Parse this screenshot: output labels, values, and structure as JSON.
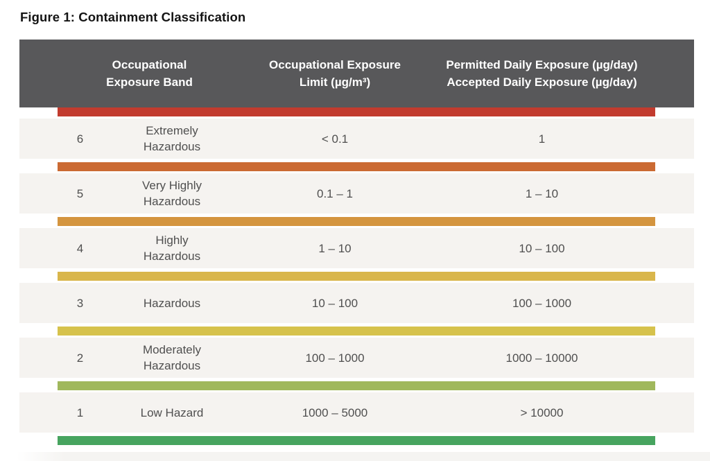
{
  "figure_title": "Figure 1: Containment Classification",
  "colors": {
    "header_bg": "#58585a",
    "header_text": "#ffffff",
    "row_bg": "#f5f3f0",
    "title_text": "#141414",
    "body_text": "#4f4f4f",
    "bars": [
      "#c23b2e",
      "#cb6a33",
      "#d4953f",
      "#d9b64b",
      "#d6c24c",
      "#a0b85c",
      "#47a45f"
    ]
  },
  "table": {
    "headers": {
      "band": [
        "Occupational",
        "Exposure Band"
      ],
      "oel": [
        "Occupational Exposure",
        "Limit (µg/m³)"
      ],
      "pde": [
        "Permitted Daily Exposure (µg/day)",
        "Accepted Daily Exposure (µg/day)"
      ]
    },
    "rows": [
      {
        "band": "6",
        "name": [
          "Extremely",
          "Hazardous"
        ],
        "oel": "< 0.1",
        "pde": "1"
      },
      {
        "band": "5",
        "name": [
          "Very Highly",
          "Hazardous"
        ],
        "oel": "0.1 – 1",
        "pde": "1 – 10"
      },
      {
        "band": "4",
        "name": [
          "Highly",
          "Hazardous"
        ],
        "oel": "1 – 10",
        "pde": "10 – 100"
      },
      {
        "band": "3",
        "name": [
          "Hazardous"
        ],
        "oel": "10 – 100",
        "pde": "100 – 1000"
      },
      {
        "band": "2",
        "name": [
          "Moderately",
          "Hazardous"
        ],
        "oel": "100 – 1000",
        "pde": "1000 – 10000"
      },
      {
        "band": "1",
        "name": [
          "Low Hazard"
        ],
        "oel": "1000 – 5000",
        "pde": "> 10000"
      }
    ]
  }
}
